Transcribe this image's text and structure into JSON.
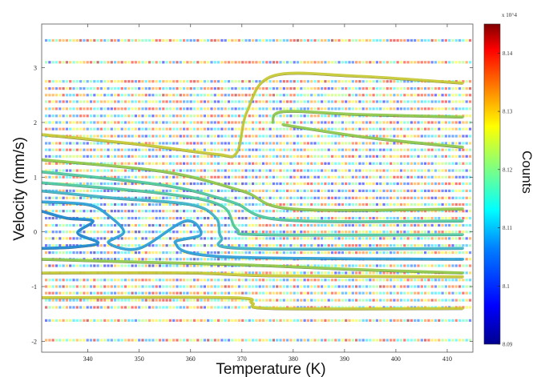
{
  "chart_data": {
    "type": "heatmap",
    "title": "",
    "xlabel": "Temperature (K)",
    "ylabel": "Velocity (mm/s)",
    "xlim": [
      331,
      415
    ],
    "ylim": [
      -2.2,
      3.8
    ],
    "xticks": [
      340,
      350,
      360,
      370,
      380,
      390,
      400,
      410
    ],
    "yticks": [
      -2,
      -1,
      0,
      1,
      2,
      3
    ],
    "grid": false,
    "colorbar": {
      "label": "Counts",
      "exponent": "x 10^4",
      "range": [
        8.09,
        8.145
      ],
      "ticks": [
        8.09,
        8.1,
        8.11,
        8.12,
        8.13,
        8.14
      ],
      "colormap": [
        "#00008f",
        "#0000ff",
        "#0080ff",
        "#00ffff",
        "#80ff80",
        "#ffff00",
        "#ff8000",
        "#ff0000",
        "#800000"
      ]
    },
    "spectrum_rows_velocity": [
      3.5,
      3.1,
      2.75,
      2.62,
      2.5,
      2.38,
      2.25,
      2.12,
      2.0,
      1.88,
      1.75,
      1.62,
      1.5,
      1.38,
      1.25,
      1.12,
      1.0,
      0.88,
      0.75,
      0.62,
      0.5,
      0.38,
      0.25,
      0.12,
      0.0,
      -0.12,
      -0.25,
      -0.38,
      -0.5,
      -0.62,
      -0.75,
      -0.88,
      -1.0,
      -1.12,
      -1.25,
      -1.38,
      -1.62,
      -1.98
    ],
    "contour_lines": [
      {
        "color": "#c6c832",
        "points": [
          [
            331,
            1.78
          ],
          [
            350,
            1.6
          ],
          [
            365,
            1.42
          ],
          [
            369,
            1.45
          ],
          [
            371,
            2.2
          ],
          [
            376,
            2.85
          ],
          [
            392,
            2.85
          ],
          [
            413,
            2.72
          ]
        ]
      },
      {
        "color": "#8ec84a",
        "points": [
          [
            376,
            2.0
          ],
          [
            378,
            2.2
          ],
          [
            392,
            2.15
          ],
          [
            413,
            2.1
          ]
        ]
      },
      {
        "color": "#8ec84a",
        "points": [
          [
            378,
            1.96
          ],
          [
            395,
            1.72
          ],
          [
            413,
            1.55
          ]
        ]
      },
      {
        "color": "#8ec84a",
        "points": [
          [
            331,
            1.32
          ],
          [
            355,
            1.1
          ],
          [
            370,
            0.75
          ],
          [
            380,
            0.42
          ],
          [
            413,
            0.42
          ]
        ]
      },
      {
        "color": "#4ec8a0",
        "points": [
          [
            331,
            1.1
          ],
          [
            355,
            0.85
          ],
          [
            368,
            0.55
          ],
          [
            378,
            0.22
          ],
          [
            413,
            0.2
          ]
        ]
      },
      {
        "color": "#4ec8a0",
        "points": [
          [
            331,
            0.9
          ],
          [
            355,
            0.7
          ],
          [
            366,
            0.48
          ],
          [
            369,
            0.05
          ],
          [
            374,
            -0.05
          ],
          [
            413,
            -0.05
          ]
        ]
      },
      {
        "color": "#3eb4c8",
        "points": [
          [
            331,
            0.75
          ],
          [
            345,
            0.62
          ],
          [
            360,
            0.5
          ],
          [
            365,
            0.25
          ],
          [
            366,
            -0.1
          ],
          [
            370,
            -0.3
          ],
          [
            413,
            -0.3
          ]
        ]
      },
      {
        "color": "#2aa0d8",
        "points": [
          [
            331,
            0.55
          ],
          [
            340,
            0.5
          ],
          [
            344,
            0.3
          ],
          [
            347,
            0.0
          ],
          [
            344,
            -0.2
          ],
          [
            350,
            -0.3
          ],
          [
            359,
            0.2
          ],
          [
            362,
            -0.05
          ],
          [
            357,
            -0.2
          ],
          [
            366,
            -0.45
          ],
          [
            413,
            -0.5
          ]
        ]
      },
      {
        "color": "#1a86d0",
        "points": [
          [
            331,
            0.38
          ],
          [
            336,
            0.25
          ],
          [
            341,
            0.2
          ],
          [
            338,
            -0.02
          ],
          [
            342,
            -0.2
          ],
          [
            337,
            -0.28
          ],
          [
            331,
            -0.3
          ]
        ]
      },
      {
        "color": "#8ec84a",
        "points": [
          [
            331,
            -0.5
          ],
          [
            350,
            -0.55
          ],
          [
            370,
            -0.6
          ],
          [
            390,
            -0.68
          ],
          [
            413,
            -0.75
          ]
        ]
      },
      {
        "color": "#c6c832",
        "points": [
          [
            331,
            -0.75
          ],
          [
            360,
            -0.75
          ],
          [
            375,
            -0.8
          ],
          [
            413,
            -0.82
          ]
        ]
      },
      {
        "color": "#c6c832",
        "points": [
          [
            331,
            -1.2
          ],
          [
            368,
            -1.2
          ],
          [
            372,
            -1.3
          ],
          [
            376,
            -1.4
          ],
          [
            413,
            -1.4
          ]
        ]
      }
    ]
  }
}
